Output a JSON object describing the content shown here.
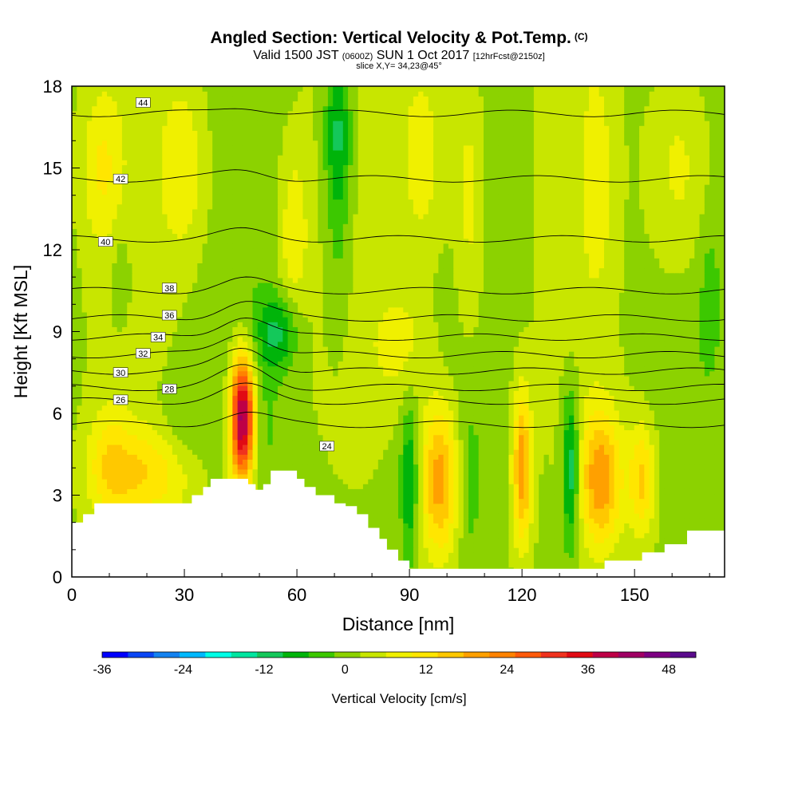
{
  "header": {
    "title": "Angled Section: Vertical Velocity & Pot.Temp.",
    "title_unit": "(C)",
    "valid_prefix": "Valid 1500 JST",
    "valid_utc": "(0600Z)",
    "valid_date": "SUN 1 Oct 2017",
    "forecast": "[12hrFcst@2150z]",
    "slice": "slice X,Y= 34,23@45°"
  },
  "chart_data": {
    "type": "heatmap",
    "xlabel": "Distance [nm]",
    "ylabel": "Height [Kft MSL]",
    "xlim": [
      0,
      174
    ],
    "ylim": [
      0,
      18
    ],
    "x_ticks": [
      "0",
      "30",
      "60",
      "90",
      "120",
      "150"
    ],
    "y_ticks": [
      "0",
      "3",
      "6",
      "9",
      "12",
      "15",
      "18"
    ],
    "x_tick_values": [
      0,
      30,
      60,
      90,
      120,
      150
    ],
    "y_tick_values": [
      0,
      3,
      6,
      9,
      12,
      15,
      18
    ],
    "terrain": [
      [
        0,
        2.0
      ],
      [
        3,
        2.3
      ],
      [
        6,
        2.7
      ],
      [
        10,
        2.7
      ],
      [
        20,
        2.7
      ],
      [
        29,
        2.7
      ],
      [
        32,
        3.0
      ],
      [
        35,
        3.3
      ],
      [
        37,
        3.6
      ],
      [
        42,
        3.6
      ],
      [
        45,
        3.6
      ],
      [
        47,
        3.4
      ],
      [
        49,
        3.2
      ],
      [
        51,
        3.4
      ],
      [
        53,
        3.9
      ],
      [
        58,
        3.9
      ],
      [
        60,
        3.6
      ],
      [
        62,
        3.3
      ],
      [
        65,
        3.0
      ],
      [
        70,
        2.7
      ],
      [
        73,
        2.6
      ],
      [
        76,
        2.3
      ],
      [
        79,
        1.8
      ],
      [
        82,
        1.4
      ],
      [
        84,
        1.0
      ],
      [
        87,
        0.6
      ],
      [
        90,
        0.3
      ],
      [
        93,
        0.3
      ],
      [
        100,
        0.3
      ],
      [
        110,
        0.3
      ],
      [
        120,
        0.3
      ],
      [
        126,
        0.3
      ],
      [
        130,
        0.3
      ],
      [
        135,
        0.3
      ],
      [
        142,
        0.6
      ],
      [
        148,
        0.6
      ],
      [
        152,
        0.9
      ],
      [
        158,
        1.2
      ],
      [
        164,
        1.7
      ],
      [
        170,
        1.7
      ],
      [
        174,
        1.7
      ]
    ],
    "features": [
      {
        "x": 45.5,
        "y": 5.8,
        "sx": 2.3,
        "sy": 1.6,
        "value": 48
      },
      {
        "x": 55,
        "y": 9.0,
        "sx": 4,
        "sy": 1.0,
        "value": -12
      },
      {
        "x": 71,
        "y": 16.5,
        "sx": 2.5,
        "sy": 2.0,
        "value": -12
      },
      {
        "x": 71,
        "y": 12.5,
        "sx": 2.5,
        "sy": 3.0,
        "value": -5
      },
      {
        "x": 59,
        "y": 12.5,
        "sx": 3,
        "sy": 2.5,
        "value": 8
      },
      {
        "x": 20,
        "y": 3.8,
        "sx": 9,
        "sy": 1.2,
        "value": 12
      },
      {
        "x": 10,
        "y": 4.2,
        "sx": 4,
        "sy": 1.5,
        "value": 8
      },
      {
        "x": 98,
        "y": 3.6,
        "sx": 3.5,
        "sy": 2.0,
        "value": 20
      },
      {
        "x": 90,
        "y": 3.5,
        "sx": 1.6,
        "sy": 2.0,
        "value": -12
      },
      {
        "x": 120,
        "y": 4.0,
        "sx": 1.8,
        "sy": 2.0,
        "value": 20
      },
      {
        "x": 133,
        "y": 4.0,
        "sx": 1.6,
        "sy": 2.0,
        "value": -16
      },
      {
        "x": 141,
        "y": 3.6,
        "sx": 4,
        "sy": 1.8,
        "value": 20
      },
      {
        "x": 152,
        "y": 3.6,
        "sx": 2.5,
        "sy": 1.5,
        "value": 14
      },
      {
        "x": 106,
        "y": 3.5,
        "sx": 2,
        "sy": 2.0,
        "value": -5
      },
      {
        "x": 48,
        "y": 5.5,
        "sx": 5,
        "sy": 1.5,
        "value": -4
      },
      {
        "x": 30,
        "y": 5.5,
        "sx": 5,
        "sy": 1.2,
        "value": -4
      },
      {
        "x": 13,
        "y": 11.0,
        "sx": 2,
        "sy": 1.5,
        "value": -4
      },
      {
        "x": 8,
        "y": 15.0,
        "sx": 4,
        "sy": 2.0,
        "value": 8
      },
      {
        "x": 30,
        "y": 15.0,
        "sx": 5,
        "sy": 2.5,
        "value": 8
      },
      {
        "x": 94,
        "y": 15.5,
        "sx": 5,
        "sy": 3.0,
        "value": 8
      },
      {
        "x": 106,
        "y": 14.0,
        "sx": 3,
        "sy": 4.0,
        "value": 8
      },
      {
        "x": 162,
        "y": 15.0,
        "sx": 6,
        "sy": 3.0,
        "value": 8
      },
      {
        "x": 140,
        "y": 14.5,
        "sx": 3,
        "sy": 3.0,
        "value": 6
      },
      {
        "x": 88,
        "y": 8.5,
        "sx": 6,
        "sy": 1.5,
        "value": 6
      },
      {
        "x": 170,
        "y": 10.5,
        "sx": 2,
        "sy": 2.0,
        "value": -4
      }
    ],
    "theta_contours": [
      {
        "label": "24",
        "y0": 5.6,
        "amp": 0.4,
        "lx": 68,
        "ly": 4.8
      },
      {
        "label": "26",
        "y0": 6.45,
        "amp": 0.55,
        "lx": 13,
        "ly": 6.5
      },
      {
        "label": "28",
        "y0": 6.95,
        "amp": 0.75,
        "lx": 26,
        "ly": 6.9
      },
      {
        "label": "30",
        "y0": 7.55,
        "amp": 0.85,
        "lx": 13,
        "ly": 7.5
      },
      {
        "label": "32",
        "y0": 8.15,
        "amp": 0.85,
        "lx": 19,
        "ly": 8.2
      },
      {
        "label": "34",
        "y0": 8.8,
        "amp": 0.8,
        "lx": 23,
        "ly": 8.8
      },
      {
        "label": "36",
        "y0": 9.5,
        "amp": 0.6,
        "lx": 26,
        "ly": 9.6
      },
      {
        "label": "38",
        "y0": 10.5,
        "amp": 0.4,
        "lx": 26,
        "ly": 10.6
      },
      {
        "label": "40",
        "y0": 12.4,
        "amp": 0.3,
        "lx": 9,
        "ly": 12.3
      },
      {
        "label": "42",
        "y0": 14.6,
        "amp": 0.3,
        "lx": 13,
        "ly": 14.6
      },
      {
        "label": "44",
        "y0": 17.0,
        "amp": 0.25,
        "lx": 19,
        "ly": 17.4
      }
    ],
    "colorbar": {
      "title": "Vertical Velocity [cm/s]",
      "tick_labels": [
        "-36",
        "-24",
        "-12",
        "0",
        "12",
        "24",
        "36",
        "48"
      ],
      "tick_values": [
        -36,
        -24,
        -12,
        0,
        12,
        24,
        36,
        48
      ],
      "levels": [
        -36,
        -32,
        -28,
        -24,
        -20,
        -16,
        -12,
        -8,
        -4,
        0,
        4,
        8,
        12,
        16,
        20,
        24,
        28,
        32,
        36,
        40,
        44,
        48,
        52
      ],
      "colors": [
        "#0000ff",
        "#0a46f5",
        "#1482f0",
        "#00b9ff",
        "#00ffe6",
        "#00e6a0",
        "#14c85a",
        "#00b40a",
        "#3cc800",
        "#8cd200",
        "#c8e600",
        "#f0f000",
        "#ffe600",
        "#ffc800",
        "#ffa000",
        "#ff8200",
        "#ff5a0a",
        "#f0321e",
        "#e10a14",
        "#be0046",
        "#a00064",
        "#7d0082",
        "#5a0a8c"
      ]
    }
  }
}
